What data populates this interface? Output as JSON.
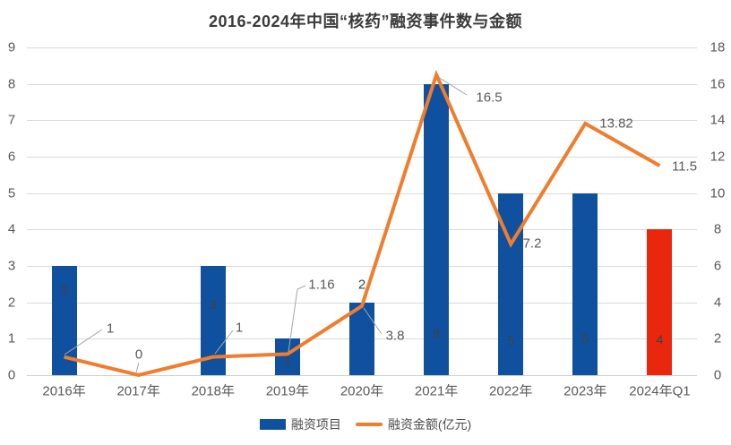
{
  "title": "2016-2024年中国“核药”融资事件数与金额",
  "chart_data": {
    "type": "combo (bar + line)",
    "categories": [
      "2016年",
      "2017年",
      "2018年",
      "2019年",
      "2020年",
      "2021年",
      "2022年",
      "2023年",
      "2024年Q1"
    ],
    "series": [
      {
        "name": "融资项目",
        "type": "bar",
        "axis": "left",
        "values": [
          3,
          0,
          3,
          1,
          2,
          8,
          5,
          5,
          4
        ],
        "point_colors": [
          "#10519f",
          "#10519f",
          "#10519f",
          "#10519f",
          "#10519f",
          "#10519f",
          "#10519f",
          "#10519f",
          "#e8270d"
        ]
      },
      {
        "name": "融资金额(亿元)",
        "type": "line",
        "axis": "right",
        "values": [
          1,
          0,
          1,
          1.16,
          3.8,
          16.5,
          7.2,
          13.82,
          11.5
        ],
        "color": "#ef7d2e"
      }
    ],
    "left_axis": {
      "min": 0,
      "max": 9,
      "step": 1
    },
    "right_axis": {
      "min": 0,
      "max": 18,
      "step": 2
    },
    "grid": "horizontal",
    "legend_position": "bottom",
    "data_labels_visible": true
  },
  "legend": {
    "items": [
      {
        "label": "融资项目"
      },
      {
        "label": "融资金额(亿元)"
      }
    ]
  },
  "colors": {
    "bar": "#10519f",
    "bar_highlight": "#e8270d",
    "line": "#ef7d2e",
    "grid": "#d9d9d9",
    "axis_line": "#cfcfcf",
    "axis_text": "#595959",
    "data_label_text": "#595959",
    "bar_label_text": "#3d4248",
    "leader_line": "#a6a6a6",
    "title_text": "#3a3a3a",
    "background": "#ffffff"
  }
}
